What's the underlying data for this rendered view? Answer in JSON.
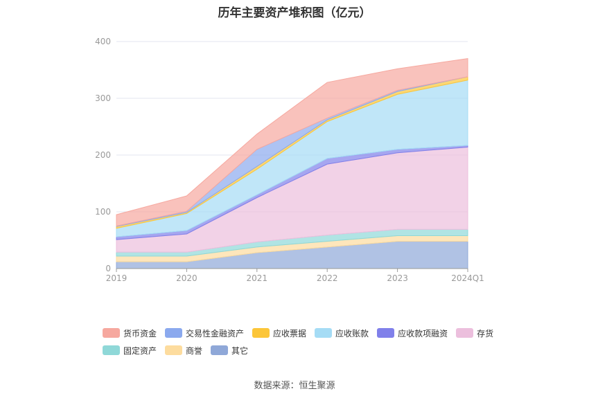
{
  "chart_data": {
    "type": "area",
    "stacked": true,
    "title": "历年主要资产堆积图（亿元）",
    "categories": [
      "2019",
      "2020",
      "2021",
      "2022",
      "2023",
      "2024Q1"
    ],
    "ylim": [
      0,
      400
    ],
    "yticks": [
      0,
      100,
      200,
      300,
      400
    ],
    "series": [
      {
        "name": "其它",
        "color": "#8fa8d8",
        "values": [
          12,
          12,
          28,
          38,
          48,
          48
        ]
      },
      {
        "name": "商誉",
        "color": "#fddc9e",
        "values": [
          10,
          10,
          10,
          10,
          10,
          10
        ]
      },
      {
        "name": "固定资产",
        "color": "#8fd8d8",
        "values": [
          7,
          7,
          9,
          11,
          11,
          11
        ]
      },
      {
        "name": "存货",
        "color": "#ecbfdd",
        "values": [
          22,
          32,
          78,
          125,
          135,
          145
        ]
      },
      {
        "name": "应收款项融资",
        "color": "#8080ea",
        "values": [
          5,
          6,
          5,
          10,
          6,
          3
        ]
      },
      {
        "name": "应收账款",
        "color": "#a5dcf5",
        "values": [
          15,
          30,
          45,
          65,
          97,
          115
        ]
      },
      {
        "name": "应收票据",
        "color": "#fcc639",
        "values": [
          3,
          2,
          5,
          3,
          5,
          6
        ]
      },
      {
        "name": "交易性金融资产",
        "color": "#8ba9ee",
        "values": [
          1,
          2,
          30,
          3,
          2,
          0
        ]
      },
      {
        "name": "货币资金",
        "color": "#f6a89f",
        "values": [
          20,
          27,
          27,
          63,
          38,
          32
        ]
      }
    ]
  },
  "legend": {
    "items": [
      "货币资金",
      "交易性金融资产",
      "应收票据",
      "应收账款",
      "应收款项融资",
      "存货",
      "固定资产",
      "商誉",
      "其它"
    ]
  },
  "source": "数据来源：恒生聚源"
}
